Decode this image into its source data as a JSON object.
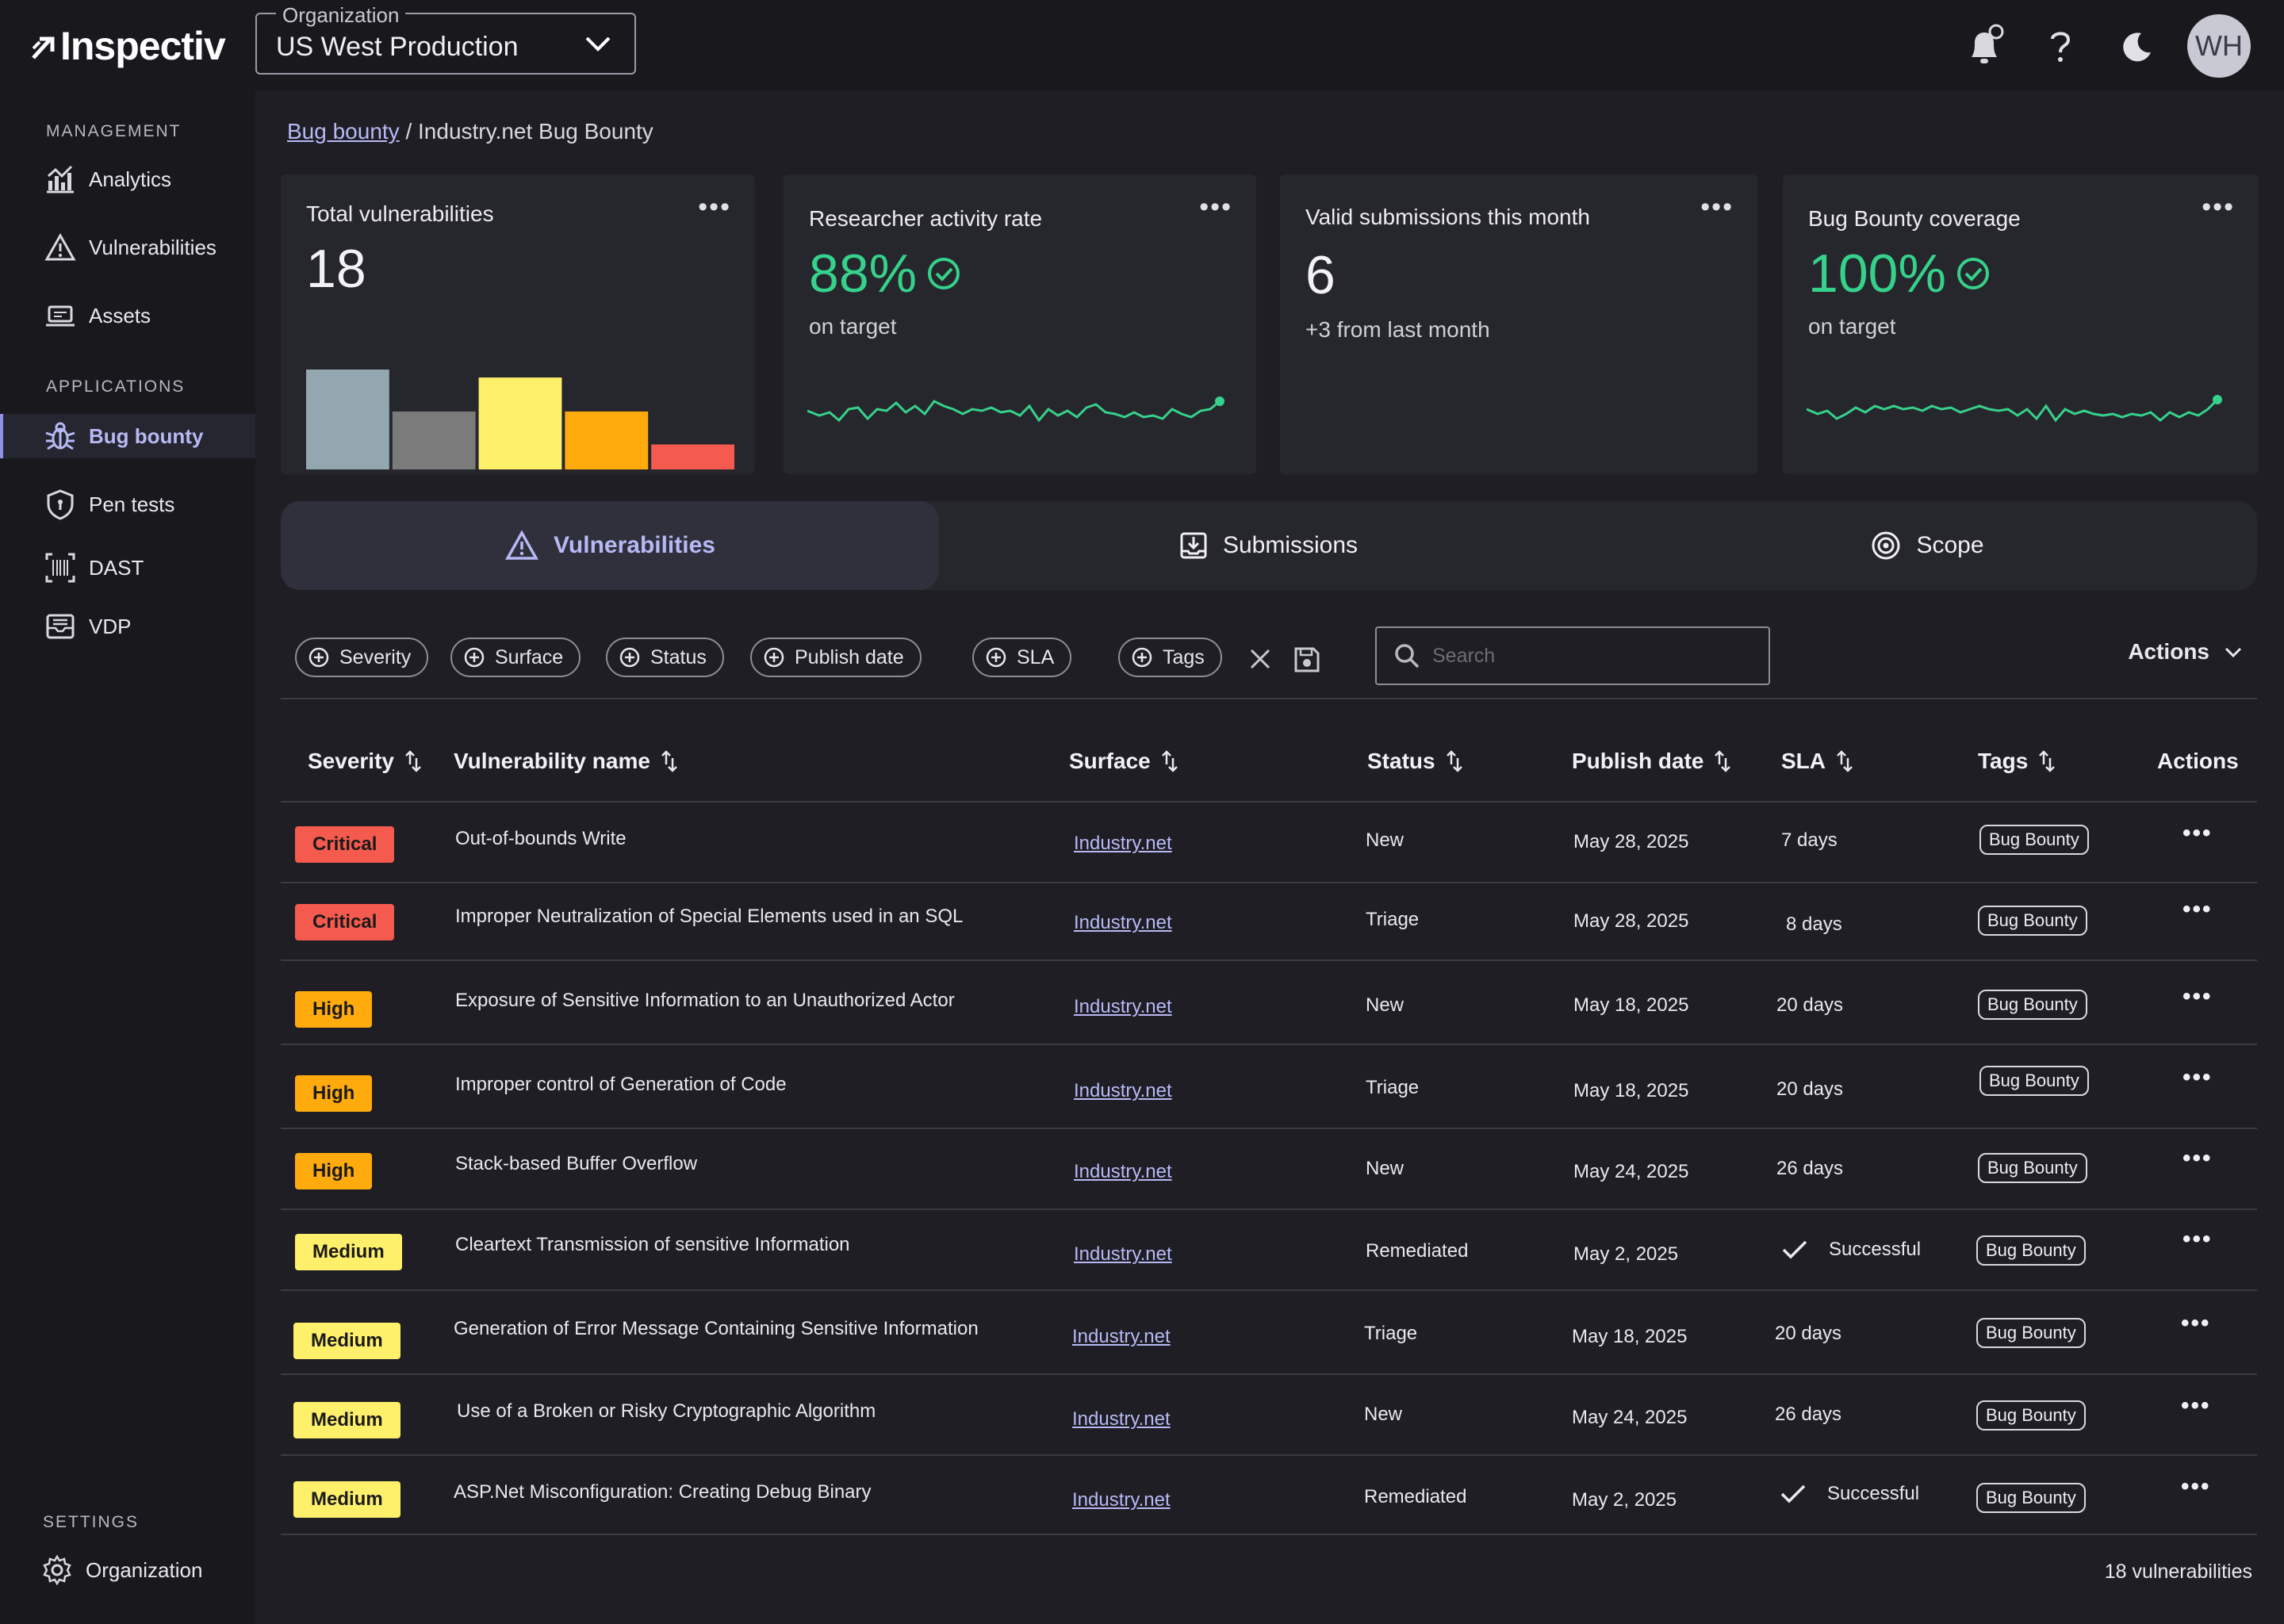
{
  "app": {
    "name": "Inspectiv",
    "avatar_initials": "WH"
  },
  "org_select": {
    "legend": "Organization",
    "value": "US West Production"
  },
  "sidebar": {
    "sections": [
      "MANAGEMENT",
      "APPLICATIONS",
      "SETTINGS"
    ],
    "items": [
      {
        "label": "Analytics",
        "icon": "analytics-icon"
      },
      {
        "label": "Vulnerabilities",
        "icon": "warning-triangle-icon"
      },
      {
        "label": "Assets",
        "icon": "laptop-icon"
      },
      {
        "label": "Bug bounty",
        "icon": "bug-icon",
        "active": true
      },
      {
        "label": "Pen tests",
        "icon": "shield-icon"
      },
      {
        "label": "DAST",
        "icon": "barcode-scan-icon"
      },
      {
        "label": "VDP",
        "icon": "inbox-icon"
      },
      {
        "label": "Organization",
        "icon": "gear-icon"
      }
    ]
  },
  "breadcrumb": {
    "parent": "Bug bounty",
    "separator": " / ",
    "current": "Industry.net Bug Bounty"
  },
  "cards": [
    {
      "title": "Total vulnerabilities",
      "value": "18",
      "bar_values": [
        100,
        58,
        92,
        58,
        25
      ],
      "bar_colors": [
        "#93a7b1",
        "#7b7b7b",
        "#fff06b",
        "#ffab0d",
        "#f55a4e"
      ]
    },
    {
      "title": "Researcher activity rate",
      "value": "88%",
      "sub": "on  target",
      "status": "on target"
    },
    {
      "title": "Valid submissions this month",
      "value": "6",
      "sub": "+3 from last month"
    },
    {
      "title": "Bug Bounty coverage",
      "value": "100%",
      "sub": "on target",
      "status": "on target"
    }
  ],
  "tabs": [
    {
      "label": "Vulnerabilities",
      "icon": "warning-triangle-icon",
      "active": true
    },
    {
      "label": "Submissions",
      "icon": "download-tray-icon"
    },
    {
      "label": "Scope",
      "icon": "target-icon"
    }
  ],
  "filters": [
    "Severity",
    "Surface",
    "Status",
    "Publish date",
    "SLA",
    "Tags"
  ],
  "search": {
    "placeholder": "Search"
  },
  "actions_label": "Actions",
  "columns": [
    "Severity",
    "Vulnerability name",
    "Surface",
    "Status",
    "Publish date",
    "SLA",
    "Tags",
    "Actions"
  ],
  "rows": [
    {
      "severity": "Critical",
      "name": "Out-of-bounds Write",
      "surface": "Industry.net",
      "status": "New",
      "date": "May 28, 2025",
      "sla": "7 days",
      "tag": "Bug Bounty"
    },
    {
      "severity": "Critical",
      "name": "Improper Neutralization of Special Elements used in an SQL",
      "surface": "Industry.net",
      "status": "Triage",
      "date": "May 28, 2025",
      "sla": "8 days",
      "tag": "Bug Bounty"
    },
    {
      "severity": "High",
      "name": "Exposure of Sensitive Information to an Unauthorized Actor",
      "surface": "Industry.net",
      "status": "New",
      "date": "May 18, 2025",
      "sla": "20 days",
      "tag": "Bug Bounty"
    },
    {
      "severity": "High",
      "name": "Improper control of Generation of Code",
      "surface": "Industry.net",
      "status": "Triage",
      "date": "May 18, 2025",
      "sla": "20 days",
      "tag": "Bug Bounty"
    },
    {
      "severity": "High",
      "name": "Stack-based Buffer Overflow",
      "surface": "Industry.net",
      "status": "New",
      "date": "May 24, 2025",
      "sla": "26 days",
      "tag": "Bug Bounty"
    },
    {
      "severity": "Medium",
      "name": "Cleartext Transmission of sensitive Information",
      "surface": "Industry.net",
      "status": "Remediated",
      "date": "May 2, 2025",
      "sla": "Successful",
      "tag": "Bug Bounty"
    },
    {
      "severity": "Medium",
      "name": "Generation of Error Message Containing Sensitive Information",
      "surface": "Industry.net",
      "status": "Triage",
      "date": "May 18, 2025",
      "sla": "20 days",
      "tag": "Bug Bounty"
    },
    {
      "severity": "Medium",
      "name": "Use of a Broken or Risky Cryptographic Algorithm",
      "surface": "Industry.net",
      "status": "New",
      "date": "May 24, 2025",
      "sla": "26 days",
      "tag": "Bug Bounty"
    },
    {
      "severity": "Medium",
      "name": "ASP.Net Misconfiguration: Creating Debug Binary",
      "surface": "Industry.net",
      "status": "Remediated",
      "date": "May 2, 2025",
      "sla": "Successful",
      "tag": "Bug Bounty"
    }
  ],
  "severity_colors": {
    "Critical": "#f55a4e",
    "High": "#ffab0d",
    "Medium": "#fff06b"
  },
  "footer": {
    "count": "18 vulnerabilities"
  }
}
